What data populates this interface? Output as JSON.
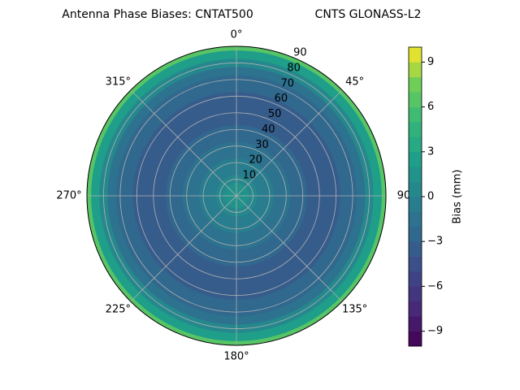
{
  "chart_data": {
    "type": "polar-contour",
    "title": "Antenna Phase Biases: CNTAT500",
    "subtitle": "CNTS GLONASS-L2",
    "zenith": [
      0,
      5,
      10,
      15,
      20,
      25,
      30,
      35,
      40,
      45,
      50,
      55,
      60,
      65,
      70,
      75,
      80,
      85,
      90
    ],
    "values": [
      1.5,
      1.2,
      0.5,
      -0.3,
      -1,
      -1.5,
      -2,
      -2.5,
      -3,
      -3.3,
      -3.5,
      -3.5,
      -3.3,
      -3,
      -2.5,
      -1.5,
      0,
      2.5,
      6
    ],
    "rlim": [
      0,
      90
    ],
    "rticks": [
      10,
      20,
      30,
      40,
      50,
      60,
      70,
      80,
      90
    ],
    "thetaticks": [
      {
        "value": 0,
        "label": "0°"
      },
      {
        "value": 45,
        "label": "45°"
      },
      90,
      {
        "value": 135,
        "label": "135°"
      },
      {
        "value": 180,
        "label": "180°"
      },
      {
        "value": 225,
        "label": "225°"
      },
      {
        "value": 270,
        "label": "270°"
      },
      {
        "value": 315,
        "label": "315°"
      }
    ],
    "colormap": "viridis",
    "clim": [
      -10,
      10
    ],
    "cticks": [
      {
        "value": -9,
        "label": "−9"
      },
      {
        "value": -6,
        "label": "−6"
      },
      {
        "value": -3,
        "label": "−3"
      },
      0,
      3,
      6,
      9
    ],
    "colorbar_label": "Bias (mm)",
    "grid": true
  }
}
